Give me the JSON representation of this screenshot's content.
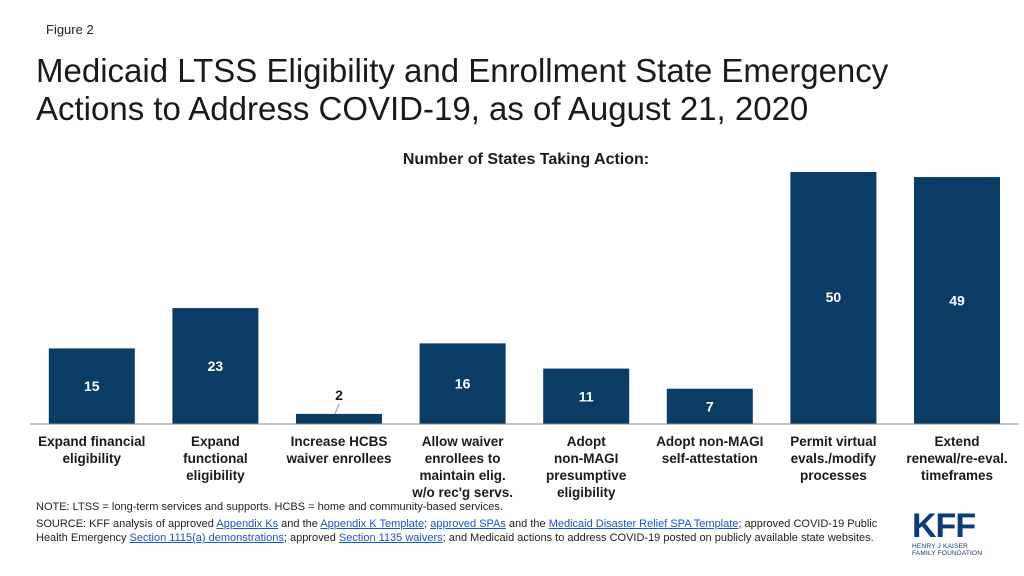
{
  "figure_label": "Figure 2",
  "title": "Medicaid LTSS Eligibility and Enrollment State Emergency Actions to Address COVID-19, as of August 21, 2020",
  "colors": {
    "bar": "#0b3c66",
    "bar_label": "#ffffff",
    "outside_label": "#1a1a1a"
  },
  "chart_data": {
    "type": "bar",
    "title": "Number of States Taking Action:",
    "categories": [
      [
        "Expand financial",
        "eligibility"
      ],
      [
        "Expand",
        "functional",
        "eligibility"
      ],
      [
        "Increase HCBS",
        "waiver enrollees"
      ],
      [
        "Allow waiver",
        "enrollees to",
        "maintain elig.",
        "w/o rec'g servs."
      ],
      [
        "Adopt",
        "non-MAGI",
        "presumptive",
        "eligibility"
      ],
      [
        "Adopt non-MAGI",
        "self-attestation"
      ],
      [
        "Permit virtual",
        "evals./modify",
        "processes"
      ],
      [
        "Extend",
        "renewal/re-eval.",
        "timeframes"
      ]
    ],
    "values": [
      15,
      23,
      2,
      16,
      11,
      7,
      50,
      49
    ],
    "ylim": [
      0,
      50
    ],
    "grid": false,
    "legend": "none"
  },
  "note": "NOTE: LTSS = long-term services and supports. HCBS = home and community-based services.",
  "source": {
    "s1": "SOURCE: KFF analysis of approved ",
    "l1": "Appendix Ks",
    "s2": " and the ",
    "l2": "Appendix K Template",
    "s3": "; ",
    "l3": "approved SPAs",
    "s4": " and the ",
    "l4": "Medicaid Disaster Relief SPA Template",
    "s5": "; approved COVID-19 Public Health Emergency ",
    "l5": "Section 1115(a) demonstrations",
    "s6": "; approved ",
    "l6": "Section 1135 waivers",
    "s7": "; and Medicaid actions to address COVID-19 posted on publicly available state websites."
  },
  "logo": {
    "mark": "KFF",
    "line1": "HENRY J KAISER",
    "line2": "FAMILY FOUNDATION"
  }
}
